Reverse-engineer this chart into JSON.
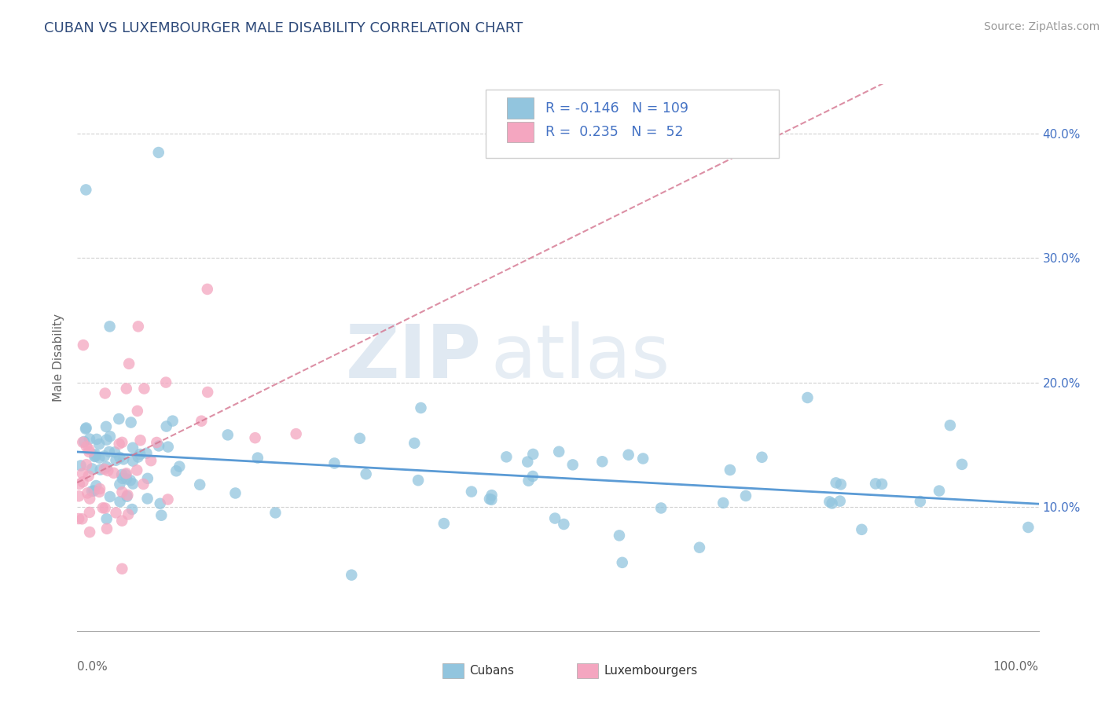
{
  "title": "CUBAN VS LUXEMBOURGER MALE DISABILITY CORRELATION CHART",
  "source_text": "Source: ZipAtlas.com",
  "ylabel": "Male Disability",
  "xlim": [
    0.0,
    1.0
  ],
  "ylim": [
    0.0,
    0.44
  ],
  "yticks": [
    0.1,
    0.2,
    0.3,
    0.4
  ],
  "ytick_labels": [
    "10.0%",
    "20.0%",
    "30.0%",
    "40.0%"
  ],
  "cubans_R": -0.146,
  "cubans_N": 109,
  "luxembourgers_R": 0.235,
  "luxembourgers_N": 52,
  "cubans_color": "#92c5de",
  "luxembourgers_color": "#f4a6c0",
  "cubans_line_color": "#5b9bd5",
  "luxembourgers_line_color": "#d4748f",
  "watermark_zip": "ZIP",
  "watermark_atlas": "atlas",
  "title_color": "#2e4a7a",
  "axis_label_color": "#666666",
  "legend_text_color": "#4472c4",
  "legend_N_color": "#4472c4",
  "grid_color": "#d0d0d0",
  "background_color": "#ffffff",
  "title_fontsize": 13,
  "source_fontsize": 10,
  "tick_fontsize": 11
}
